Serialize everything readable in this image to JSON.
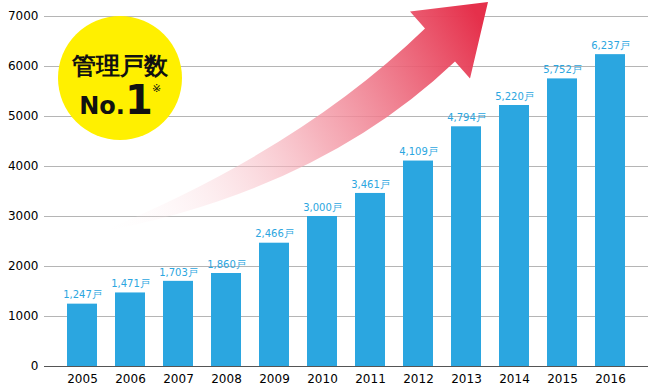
{
  "chart_data": {
    "type": "bar",
    "categories": [
      "2005",
      "2006",
      "2007",
      "2008",
      "2009",
      "2010",
      "2011",
      "2012",
      "2013",
      "2014",
      "2015",
      "2016"
    ],
    "values": [
      1247,
      1471,
      1703,
      1860,
      2466,
      3000,
      3461,
      4109,
      4794,
      5220,
      5752,
      6237
    ],
    "value_labels": [
      "1,247戸",
      "1,471戸",
      "1,703戸",
      "1,860戸",
      "2,466戸",
      "3,000戸",
      "3,461戸",
      "4,109戸",
      "4,794戸",
      "5,220戸",
      "5,752戸",
      "6,237戸"
    ],
    "color": "#2ba6e0",
    "ylim": [
      0,
      7000
    ],
    "yticks": [
      0,
      1000,
      2000,
      3000,
      4000,
      5000,
      6000,
      7000
    ],
    "grid": true,
    "data_labels": true,
    "annotations": [
      "管理戸数",
      "No.1",
      "※"
    ]
  }
}
